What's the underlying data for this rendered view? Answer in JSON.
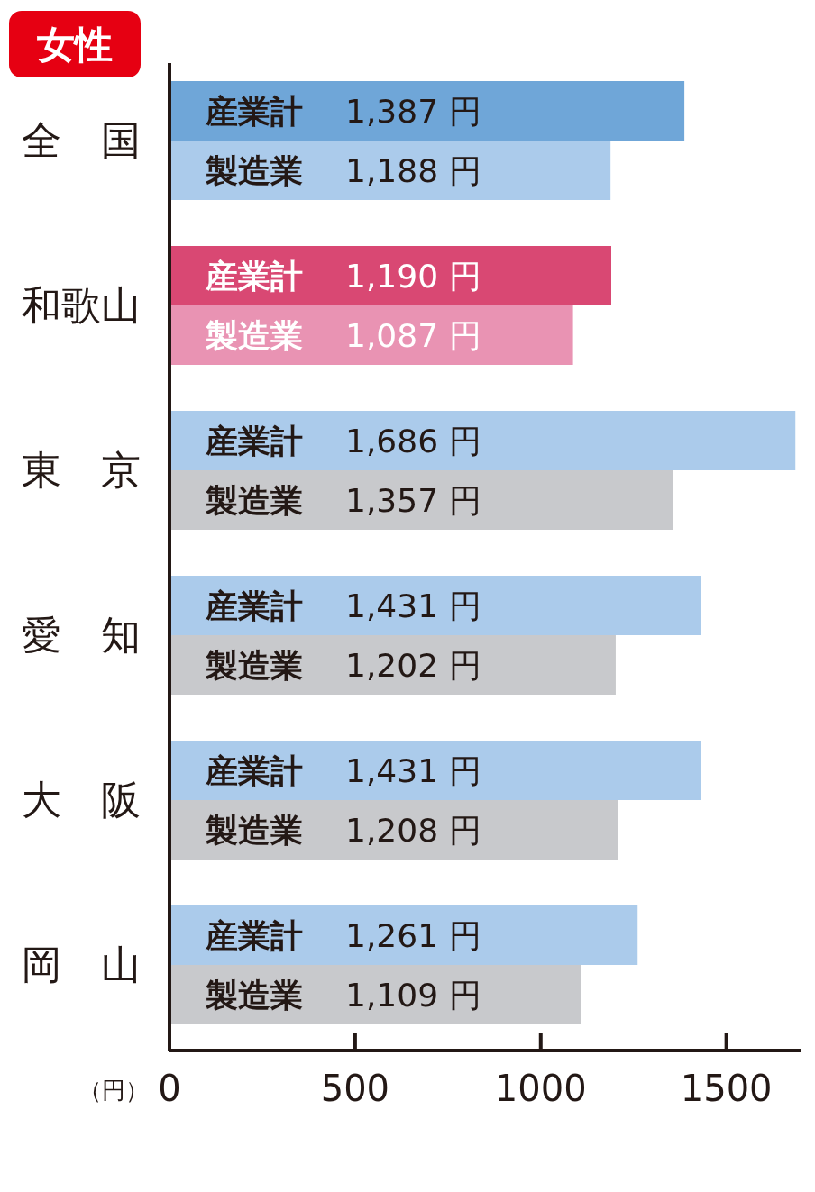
{
  "chart_data": {
    "type": "bar",
    "orientation": "horizontal",
    "title": "女性",
    "xlabel": "（円）",
    "categories": [
      "全　国",
      "和歌山",
      "東　京",
      "愛　知",
      "大　阪",
      "岡　山"
    ],
    "series": [
      {
        "name": "産業計",
        "colors": [
          "#6fa6d8",
          "#d94873",
          "#abcbeb",
          "#abcbeb",
          "#abcbeb",
          "#abcbeb"
        ],
        "values": [
          1387,
          1190,
          1686,
          1431,
          1431,
          1261
        ],
        "value_labels": [
          "1,387 円",
          "1,190 円",
          "1,686 円",
          "1,431 円",
          "1,431 円",
          "1,261 円"
        ]
      },
      {
        "name": "製造業",
        "colors": [
          "#abcbeb",
          "#e993b3",
          "#c8c9cc",
          "#c8c9cc",
          "#c8c9cc",
          "#c8c9cc"
        ],
        "values": [
          1188,
          1087,
          1357,
          1202,
          1208,
          1109
        ],
        "value_labels": [
          "1,188 円",
          "1,087 円",
          "1,357 円",
          "1,202 円",
          "1,208 円",
          "1,109 円"
        ]
      }
    ],
    "xlim": [
      0,
      1700
    ],
    "xticks": [
      0,
      500,
      1000,
      1500
    ],
    "grid": false,
    "legend": false
  }
}
